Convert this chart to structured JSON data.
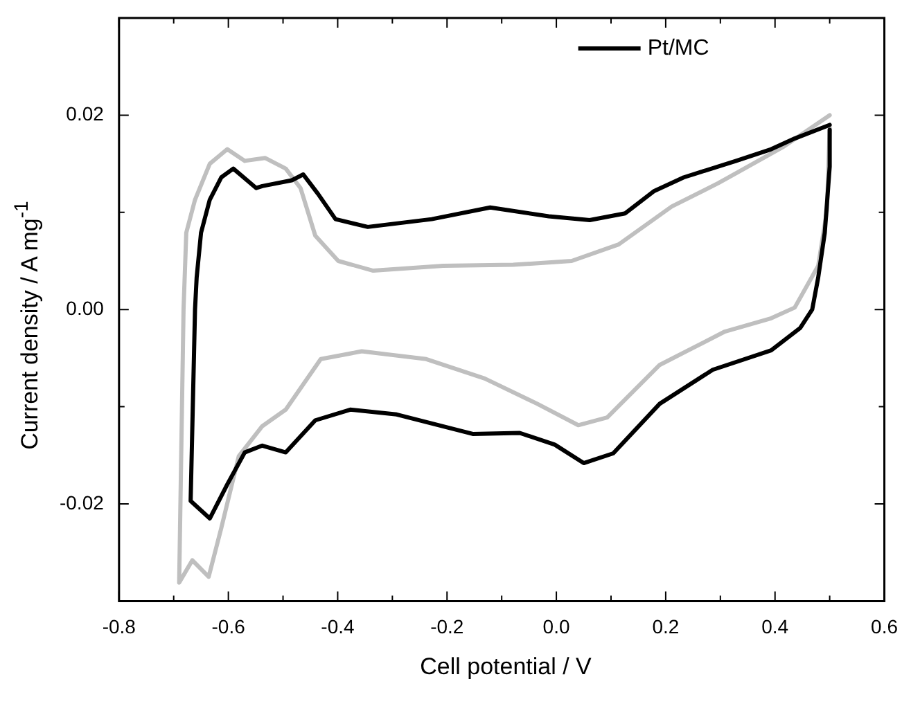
{
  "chart_data": {
    "type": "line",
    "xlabel": "Cell potential / V",
    "ylabel": "Current density / A mg$^{-1}$",
    "xlim": [
      -0.8,
      0.6
    ],
    "ylim": [
      -0.03,
      0.03
    ],
    "xticks": [
      {
        "value": -0.8,
        "label": "-0.8"
      },
      {
        "value": -0.7,
        "label": null
      },
      {
        "value": -0.6,
        "label": "-0.6"
      },
      {
        "value": -0.5,
        "label": null
      },
      {
        "value": -0.4,
        "label": "-0.4"
      },
      {
        "value": -0.3,
        "label": null
      },
      {
        "value": -0.2,
        "label": "-0.2"
      },
      {
        "value": -0.1,
        "label": null
      },
      {
        "value": 0,
        "label": "0.0"
      },
      {
        "value": 0.1,
        "label": null
      },
      {
        "value": 0.2,
        "label": "0.2"
      },
      {
        "value": 0.3,
        "label": null
      },
      {
        "value": 0.4,
        "label": "0.4"
      },
      {
        "value": 0.5,
        "label": null
      },
      {
        "value": 0.6,
        "label": "0.6"
      }
    ],
    "yticks": [
      {
        "value": -0.03,
        "label": null
      },
      {
        "value": -0.02,
        "label": "-0.02"
      },
      {
        "value": -0.01,
        "label": null
      },
      {
        "value": 0,
        "label": "0.00"
      },
      {
        "value": 0.01,
        "label": null
      },
      {
        "value": 0.02,
        "label": "0.02"
      },
      {
        "value": 0.03,
        "label": null
      }
    ],
    "legend": "top right",
    "marker": "none",
    "line_style": "solid",
    "series": [
      {
        "name": "Pt/MC",
        "color": "#000000",
        "x": [
          0.5,
          0.436,
          0.393,
          0.329,
          0.233,
          0.179,
          0.126,
          0.061,
          -0.014,
          -0.121,
          -0.228,
          -0.345,
          -0.404,
          -0.436,
          -0.463,
          -0.484,
          -0.538,
          -0.549,
          -0.591,
          -0.613,
          -0.634,
          -0.65,
          -0.658,
          -0.661,
          -0.669,
          -0.634,
          -0.602,
          -0.57,
          -0.538,
          -0.495,
          -0.441,
          -0.377,
          -0.292,
          -0.153,
          -0.067,
          -0.003,
          0.05,
          0.104,
          0.189,
          0.286,
          0.393,
          0.446,
          0.468,
          0.479,
          0.491,
          0.5,
          0.5
        ],
        "values": [
          0.019,
          0.0176,
          0.0165,
          0.0153,
          0.0136,
          0.0122,
          0.0099,
          0.0092,
          0.0096,
          0.0105,
          0.0093,
          0.0085,
          0.0093,
          0.0119,
          0.0139,
          0.0133,
          0.0127,
          0.0125,
          0.0145,
          0.0136,
          0.0113,
          0.0079,
          0.0033,
          0.0,
          -0.0197,
          -0.0215,
          -0.018,
          -0.0147,
          -0.014,
          -0.0147,
          -0.0114,
          -0.0103,
          -0.0108,
          -0.0128,
          -0.0127,
          -0.0139,
          -0.0158,
          -0.0148,
          -0.0097,
          -0.0062,
          -0.0042,
          -0.0019,
          0.0,
          0.0033,
          0.0079,
          0.0147,
          0.0185
        ]
      },
      {
        "color": "#bfbfbf",
        "x": [
          0.5,
          0.414,
          0.296,
          0.211,
          0.114,
          0.028,
          -0.079,
          -0.207,
          -0.335,
          -0.399,
          -0.441,
          -0.468,
          -0.495,
          -0.533,
          -0.57,
          -0.602,
          -0.634,
          -0.661,
          -0.677,
          -0.682,
          -0.69,
          -0.666,
          -0.636,
          -0.613,
          -0.581,
          -0.538,
          -0.495,
          -0.431,
          -0.356,
          -0.238,
          -0.131,
          -0.035,
          0.04,
          0.093,
          0.189,
          0.307,
          0.393,
          0.436,
          0.479,
          0.495,
          0.5
        ],
        "values": [
          0.02,
          0.0167,
          0.013,
          0.0106,
          0.0067,
          0.005,
          0.0046,
          0.0045,
          0.004,
          0.005,
          0.0076,
          0.0125,
          0.0145,
          0.0156,
          0.0153,
          0.0165,
          0.015,
          0.0113,
          0.0079,
          0.0,
          -0.0281,
          -0.0258,
          -0.0275,
          -0.0225,
          -0.0151,
          -0.012,
          -0.0103,
          -0.0051,
          -0.0043,
          -0.0051,
          -0.0071,
          -0.0097,
          -0.0119,
          -0.0111,
          -0.0057,
          -0.0023,
          -0.0009,
          0.0002,
          0.0045,
          0.0102,
          0.0187
        ]
      }
    ]
  }
}
